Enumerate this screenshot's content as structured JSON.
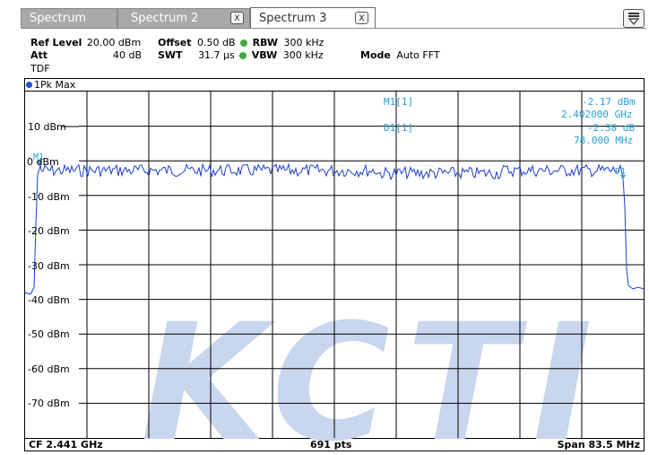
{
  "tabs": [
    {
      "label": "Spectrum",
      "close": ""
    },
    {
      "label": "Spectrum 2",
      "close": "X"
    },
    {
      "label": "Spectrum 3",
      "close": "X"
    }
  ],
  "settings": {
    "ref_level_label": "Ref Level",
    "ref_level_value": "20.00 dBm",
    "offset_label": "Offset",
    "offset_value": "0.50 dB",
    "rbw_label": "RBW",
    "rbw_value": "300 kHz",
    "att_label": "Att",
    "att_value": "40 dB",
    "swt_label": "SWT",
    "swt_value": "31.7 µs",
    "vbw_label": "VBW",
    "vbw_value": "300 kHz",
    "mode_label": "Mode",
    "mode_value": "Auto FFT",
    "tdf_label": "TDF"
  },
  "trace_label": "1Pk Max",
  "markers": {
    "m1_label": "M1[1]",
    "m1_level": "-2.17 dBm",
    "m1_freq": "2.402000 GHz",
    "d1_label": "D1[1]",
    "d1_level": "-2.38 dB",
    "d1_freq": "78.000 MHz",
    "m1_tag": "M1",
    "d1_tag": "D1"
  },
  "y_axis_labels": [
    "10 dBm",
    "0 dBm",
    "-10 dBm",
    "-20 dBm",
    "-30 dBm",
    "-40 dBm",
    "-50 dBm",
    "-60 dBm",
    "-70 dBm"
  ],
  "footer": {
    "center_freq": "CF 2.441 GHz",
    "points": "691 pts",
    "span": "Span 83.5 MHz"
  },
  "watermark": "KCTI",
  "colors": {
    "trace": "#1e3fd0",
    "marker_text": "#2aa0d8",
    "watermark": "#c8d6ee",
    "grid": "#000000"
  }
}
